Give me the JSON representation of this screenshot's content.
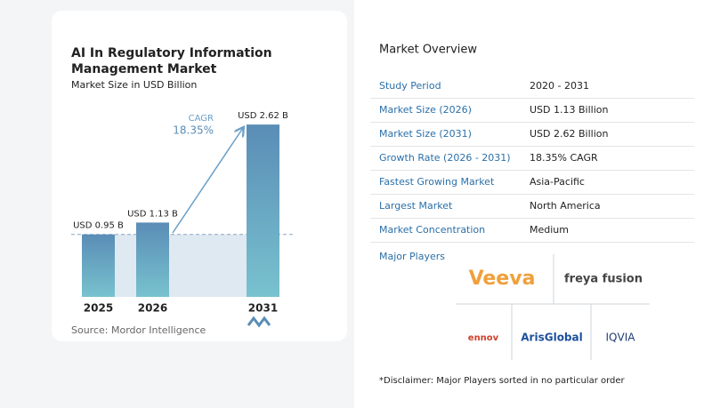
{
  "chart_data": {
    "type": "bar",
    "title": "AI In Regulatory Information Management Market",
    "subtitle": "Market Size in USD Billion",
    "categories": [
      "2025",
      "2026",
      "2031"
    ],
    "values": [
      0.95,
      1.13,
      2.62
    ],
    "value_labels": [
      "USD 0.95 B",
      "USD 1.13 B",
      "USD 2.62 B"
    ],
    "annotation": {
      "label": "CAGR",
      "value": "18.35%"
    },
    "source": "Source: Mordor Intelligence"
  },
  "overview": {
    "title": "Market Overview",
    "rows": [
      [
        "Study Period",
        "2020 - 2031"
      ],
      [
        "Market Size (2026)",
        "USD 1.13 Billion"
      ],
      [
        "Market Size (2031)",
        "USD 2.62 Billion"
      ],
      [
        "Growth Rate (2026 - 2031)",
        "18.35% CAGR"
      ],
      [
        "Fastest Growing Market",
        "Asia-Pacific"
      ],
      [
        "Largest Market",
        "North America"
      ],
      [
        "Market Concentration",
        "Medium"
      ]
    ],
    "players_title": "Major Players",
    "players": [
      "Veeva",
      "freya fusion",
      "ennov",
      "ArisGlobal",
      "IQVIA"
    ],
    "disclaimer": "*Disclaimer: Major Players sorted in no particular order"
  }
}
